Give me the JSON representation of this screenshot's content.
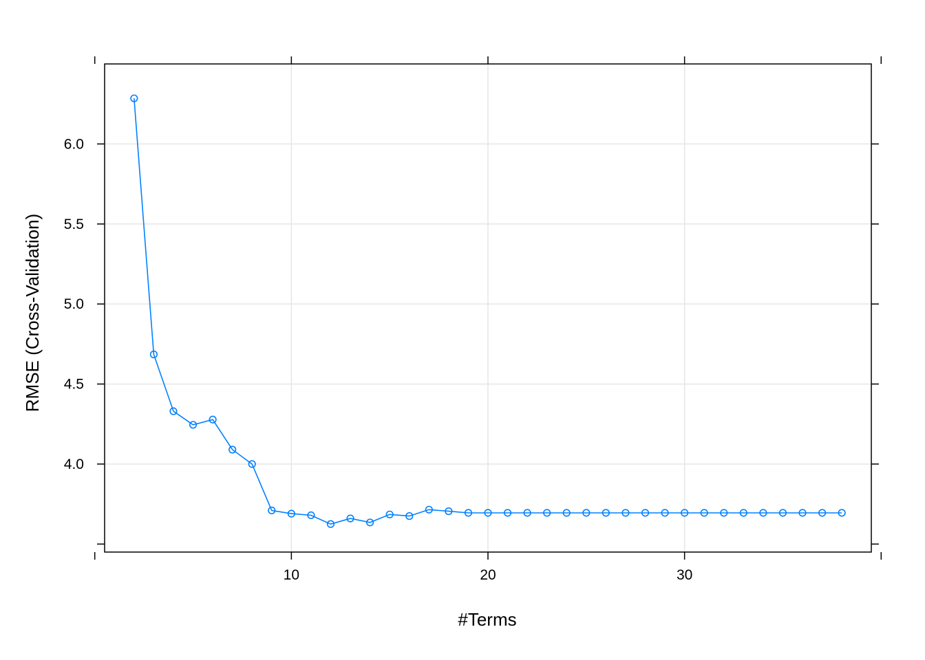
{
  "chart_data": {
    "type": "line",
    "title": "",
    "xlabel": "#Terms",
    "ylabel": "RMSE (Cross-Validation)",
    "xlim": [
      0.5,
      39.5
    ],
    "ylim": [
      3.45,
      6.5
    ],
    "x_ticks": [
      10,
      20,
      30
    ],
    "x_tick_labels": [
      "10",
      "20",
      "30"
    ],
    "x_ticks_unlabeled": [
      0,
      40
    ],
    "y_ticks": [
      4.0,
      4.5,
      5.0,
      5.5,
      6.0
    ],
    "y_tick_labels": [
      "4.0",
      "4.5",
      "5.0",
      "5.5",
      "6.0"
    ],
    "y_ticks_unlabeled": [
      3.5
    ],
    "grid": true,
    "colors": {
      "series": "#0080ff",
      "grid": "#e6e6e6",
      "frame": "#000000"
    },
    "series": [
      {
        "x": [
          2,
          3,
          4,
          5,
          6,
          7,
          8,
          9,
          10,
          11,
          12,
          13,
          14,
          15,
          16,
          17,
          18,
          19,
          20,
          21,
          22,
          23,
          24,
          25,
          26,
          27,
          28,
          29,
          30,
          31,
          32,
          33,
          34,
          35,
          36,
          37,
          38
        ],
        "y": [
          6.285,
          4.685,
          4.33,
          4.245,
          4.278,
          4.09,
          4.0,
          3.71,
          3.69,
          3.68,
          3.625,
          3.66,
          3.635,
          3.685,
          3.675,
          3.715,
          3.705,
          3.695,
          3.695,
          3.695,
          3.695,
          3.695,
          3.695,
          3.695,
          3.695,
          3.695,
          3.695,
          3.695,
          3.695,
          3.695,
          3.695,
          3.695,
          3.695,
          3.695,
          3.695,
          3.695,
          3.695
        ]
      }
    ]
  }
}
